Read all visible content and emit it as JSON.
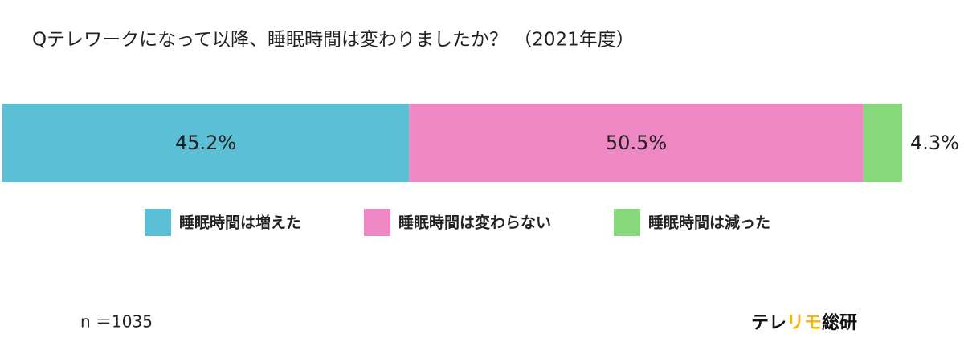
{
  "chart_data": {
    "type": "bar",
    "orientation": "horizontal",
    "stacked": true,
    "title": "Qテレワークになって以降、睡眠時間は変わりましたか？ （2021年度）",
    "xlim": [
      0,
      100
    ],
    "series": [
      {
        "name": "睡眠時間は増えた",
        "color": "#5bbfd6",
        "values": [
          45.2
        ],
        "value_labels": [
          "45.2%"
        ]
      },
      {
        "name": "睡眠時間は変わらない",
        "color": "#ee87c4",
        "values": [
          50.5
        ],
        "value_labels": [
          "50.5%"
        ]
      },
      {
        "name": "睡眠時間は減った",
        "color": "#86d87a",
        "values": [
          4.3
        ],
        "value_labels": [
          "4.3%"
        ]
      }
    ],
    "legend": "bottom",
    "note": "n ＝1035",
    "brand": [
      {
        "text": "テレ",
        "color": "#111111"
      },
      {
        "text": "リモ",
        "color": "#f2b705"
      },
      {
        "text": "総研",
        "color": "#111111"
      }
    ]
  }
}
